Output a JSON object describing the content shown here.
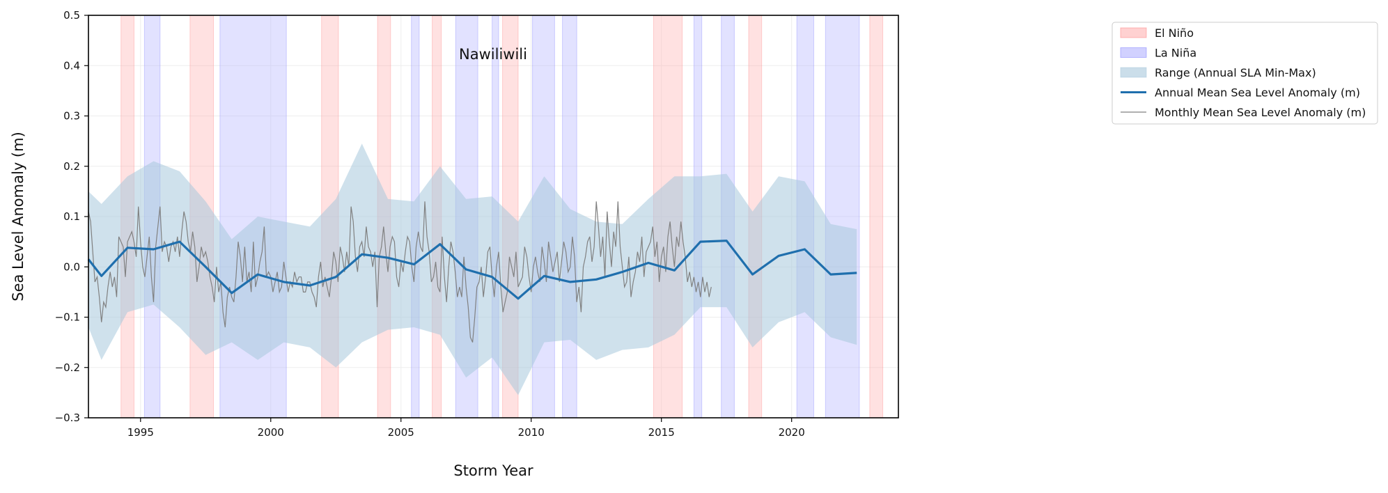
{
  "chart_data": {
    "type": "line",
    "title": "Nawiliwili",
    "xlabel": "Storm Year",
    "ylabel": "Sea Level Anomaly (m)",
    "xlim": [
      1993.0,
      2024.1
    ],
    "ylim": [
      -0.3,
      0.5
    ],
    "x_ticks": [
      1995,
      2000,
      2005,
      2010,
      2015,
      2020
    ],
    "x_tick_labels": [
      "1995",
      "2000",
      "2005",
      "2010",
      "2015",
      "2020"
    ],
    "y_ticks": [
      -0.3,
      -0.2,
      -0.1,
      0.0,
      0.1,
      0.2,
      0.3,
      0.4,
      0.5
    ],
    "y_tick_labels": [
      "−0.3",
      "−0.2",
      "−0.1",
      "0.0",
      "0.1",
      "0.2",
      "0.3",
      "0.4",
      "0.5"
    ],
    "grid": true,
    "legend_position": "outside top-right",
    "colors": {
      "el_nino": "#ffb3b3",
      "la_nina": "#b3b3ff",
      "range": "#a8c8dc",
      "annual": "#1f6fad",
      "monthly": "#808080"
    },
    "legend": [
      {
        "label": "El Niño",
        "kind": "patch",
        "color": "#ffb3b3",
        "border": "#ff8080"
      },
      {
        "label": "La Niña",
        "kind": "patch",
        "color": "#b3b3ff",
        "border": "#8080ff"
      },
      {
        "label": "Range (Annual SLA Min-Max)",
        "kind": "patch",
        "color": "#a8c8dc",
        "border": "#a8c8dc"
      },
      {
        "label": "Annual Mean Sea Level Anomaly (m)",
        "kind": "line",
        "color": "#1f6fad",
        "width": 3
      },
      {
        "label": "Monthly Mean Sea Level Anomaly (m)",
        "kind": "line",
        "color": "#808080",
        "width": 1.2
      }
    ],
    "el_nino_periods": [
      [
        1994.25,
        1994.75
      ],
      [
        1996.9,
        1997.8
      ],
      [
        2001.95,
        2002.6
      ],
      [
        2004.1,
        2004.6
      ],
      [
        2006.2,
        2006.55
      ],
      [
        2008.9,
        2009.5
      ],
      [
        2014.7,
        2015.8
      ],
      [
        2018.35,
        2018.85
      ],
      [
        2023.0,
        2023.5
      ]
    ],
    "la_nina_periods": [
      [
        1995.15,
        1995.75
      ],
      [
        1998.05,
        2000.6
      ],
      [
        2005.4,
        2005.7
      ],
      [
        2007.1,
        2007.95
      ],
      [
        2008.5,
        2008.75
      ],
      [
        2010.05,
        2010.9
      ],
      [
        2011.2,
        2011.75
      ],
      [
        2016.25,
        2016.55
      ],
      [
        2017.3,
        2017.8
      ],
      [
        2020.2,
        2020.85
      ],
      [
        2021.3,
        2022.6
      ]
    ],
    "range_band": {
      "x": [
        1993.0,
        1993.5,
        1994.5,
        1995.5,
        1996.5,
        1997.5,
        1998.5,
        1999.5,
        2000.5,
        2001.5,
        2002.5,
        2003.5,
        2004.5,
        2005.5,
        2006.5,
        2007.5,
        2008.5,
        2009.5,
        2010.5,
        2011.5,
        2012.5,
        2013.5,
        2014.5,
        2015.5,
        2016.5,
        2017.5,
        2018.5,
        2019.5,
        2020.5,
        2021.5,
        2022.5
      ],
      "min": [
        -0.12,
        -0.185,
        -0.09,
        -0.075,
        -0.12,
        -0.175,
        -0.15,
        -0.185,
        -0.15,
        -0.16,
        -0.2,
        -0.15,
        -0.125,
        -0.12,
        -0.135,
        -0.22,
        -0.18,
        -0.255,
        -0.15,
        -0.145,
        -0.185,
        -0.165,
        -0.16,
        -0.135,
        -0.08,
        -0.08,
        -0.16,
        -0.11,
        -0.09,
        -0.14,
        -0.155
      ],
      "max": [
        0.15,
        0.125,
        0.18,
        0.21,
        0.19,
        0.13,
        0.055,
        0.1,
        0.09,
        0.08,
        0.135,
        0.245,
        0.135,
        0.13,
        0.2,
        0.135,
        0.14,
        0.09,
        0.18,
        0.115,
        0.09,
        0.085,
        0.135,
        0.18,
        0.18,
        0.185,
        0.11,
        0.18,
        0.17,
        0.085,
        0.075
      ]
    },
    "series": [
      {
        "name": "Annual Mean Sea Level Anomaly (m)",
        "x": [
          1993.0,
          1993.5,
          1994.5,
          1995.5,
          1996.5,
          1997.5,
          1998.5,
          1999.5,
          2000.5,
          2001.5,
          2002.5,
          2003.5,
          2004.5,
          2005.5,
          2006.5,
          2007.5,
          2008.5,
          2009.5,
          2010.5,
          2011.5,
          2012.5,
          2013.5,
          2014.5,
          2015.5,
          2016.5,
          2017.5,
          2018.5,
          2019.5,
          2020.5,
          2021.5,
          2022.5
        ],
        "y": [
          0.015,
          -0.018,
          0.038,
          0.035,
          0.05,
          0.0,
          -0.052,
          -0.015,
          -0.03,
          -0.037,
          -0.02,
          0.025,
          0.018,
          0.005,
          0.045,
          -0.005,
          -0.02,
          -0.063,
          -0.018,
          -0.03,
          -0.025,
          -0.01,
          0.008,
          -0.007,
          0.05,
          0.052,
          -0.015,
          0.022,
          0.035,
          -0.015,
          -0.012
        ]
      },
      {
        "name": "Monthly Mean Sea Level Anomaly (m)",
        "x_start": 1993.0,
        "x_step": 0.08333,
        "y": [
          0.11,
          0.09,
          0.03,
          -0.03,
          -0.02,
          -0.06,
          -0.11,
          -0.07,
          -0.08,
          -0.04,
          -0.01,
          -0.04,
          -0.02,
          -0.06,
          0.06,
          0.05,
          0.04,
          -0.02,
          0.05,
          0.06,
          0.07,
          0.05,
          0.02,
          0.12,
          0.05,
          0.0,
          -0.02,
          0.02,
          0.06,
          -0.02,
          -0.07,
          0.04,
          0.08,
          0.12,
          0.03,
          0.05,
          0.04,
          0.01,
          0.04,
          0.05,
          0.03,
          0.06,
          0.02,
          0.07,
          0.11,
          0.09,
          0.05,
          0.03,
          0.07,
          0.04,
          -0.03,
          0.0,
          0.04,
          0.02,
          0.03,
          0.01,
          -0.02,
          -0.04,
          -0.07,
          0.0,
          -0.05,
          -0.03,
          -0.09,
          -0.12,
          -0.06,
          -0.04,
          -0.06,
          -0.07,
          -0.02,
          0.05,
          0.02,
          -0.03,
          0.04,
          -0.03,
          -0.01,
          -0.05,
          0.05,
          -0.04,
          -0.02,
          0.01,
          0.03,
          0.08,
          -0.02,
          -0.01,
          -0.02,
          -0.05,
          -0.03,
          -0.01,
          -0.05,
          -0.04,
          0.01,
          -0.02,
          -0.05,
          -0.03,
          -0.04,
          -0.01,
          -0.03,
          -0.02,
          -0.02,
          -0.05,
          -0.05,
          -0.03,
          -0.03,
          -0.05,
          -0.06,
          -0.08,
          -0.02,
          0.01,
          -0.04,
          -0.02,
          -0.04,
          -0.06,
          -0.02,
          0.03,
          0.01,
          -0.03,
          0.04,
          0.02,
          -0.01,
          0.03,
          0.0,
          0.12,
          0.09,
          0.02,
          -0.01,
          0.04,
          0.05,
          0.02,
          0.08,
          0.04,
          0.03,
          0.0,
          0.03,
          -0.08,
          0.02,
          0.04,
          0.08,
          0.03,
          -0.01,
          0.04,
          0.06,
          0.05,
          -0.02,
          -0.04,
          0.01,
          -0.01,
          0.03,
          0.06,
          0.05,
          0.0,
          -0.03,
          0.04,
          0.07,
          0.04,
          0.03,
          0.13,
          0.06,
          0.03,
          -0.03,
          -0.02,
          0.01,
          -0.04,
          -0.05,
          0.06,
          -0.02,
          -0.07,
          0.0,
          0.05,
          0.03,
          -0.01,
          -0.06,
          -0.04,
          -0.06,
          0.02,
          -0.04,
          -0.08,
          -0.14,
          -0.15,
          -0.1,
          -0.04,
          -0.03,
          0.0,
          -0.06,
          -0.02,
          0.03,
          0.04,
          -0.02,
          -0.06,
          0.0,
          0.03,
          -0.04,
          -0.09,
          -0.07,
          -0.05,
          0.02,
          0.0,
          -0.02,
          0.03,
          -0.04,
          -0.03,
          -0.02,
          0.04,
          0.02,
          -0.02,
          -0.05,
          0.0,
          0.02,
          -0.01,
          -0.03,
          0.04,
          0.01,
          -0.03,
          0.05,
          0.02,
          -0.01,
          0.01,
          0.03,
          -0.03,
          0.01,
          0.05,
          0.03,
          -0.01,
          0.0,
          0.06,
          0.02,
          -0.07,
          -0.04,
          -0.09,
          0.0,
          0.02,
          0.05,
          0.06,
          0.01,
          0.04,
          0.13,
          0.08,
          0.02,
          0.06,
          -0.02,
          0.11,
          0.05,
          0.0,
          0.07,
          0.04,
          0.13,
          0.04,
          0.0,
          -0.04,
          -0.03,
          0.02,
          -0.06,
          -0.03,
          -0.01,
          0.03,
          0.01,
          0.06,
          -0.02,
          0.03,
          0.04,
          0.05,
          0.08,
          0.02,
          0.05,
          -0.03,
          0.02,
          0.04,
          -0.01,
          0.06,
          0.09,
          0.04,
          0.0,
          0.06,
          0.04,
          0.09,
          0.05,
          0.02,
          -0.03,
          -0.01,
          -0.04,
          -0.02,
          -0.05,
          -0.03,
          -0.06,
          -0.02,
          -0.05,
          -0.03,
          -0.06,
          -0.04
        ]
      }
    ]
  }
}
